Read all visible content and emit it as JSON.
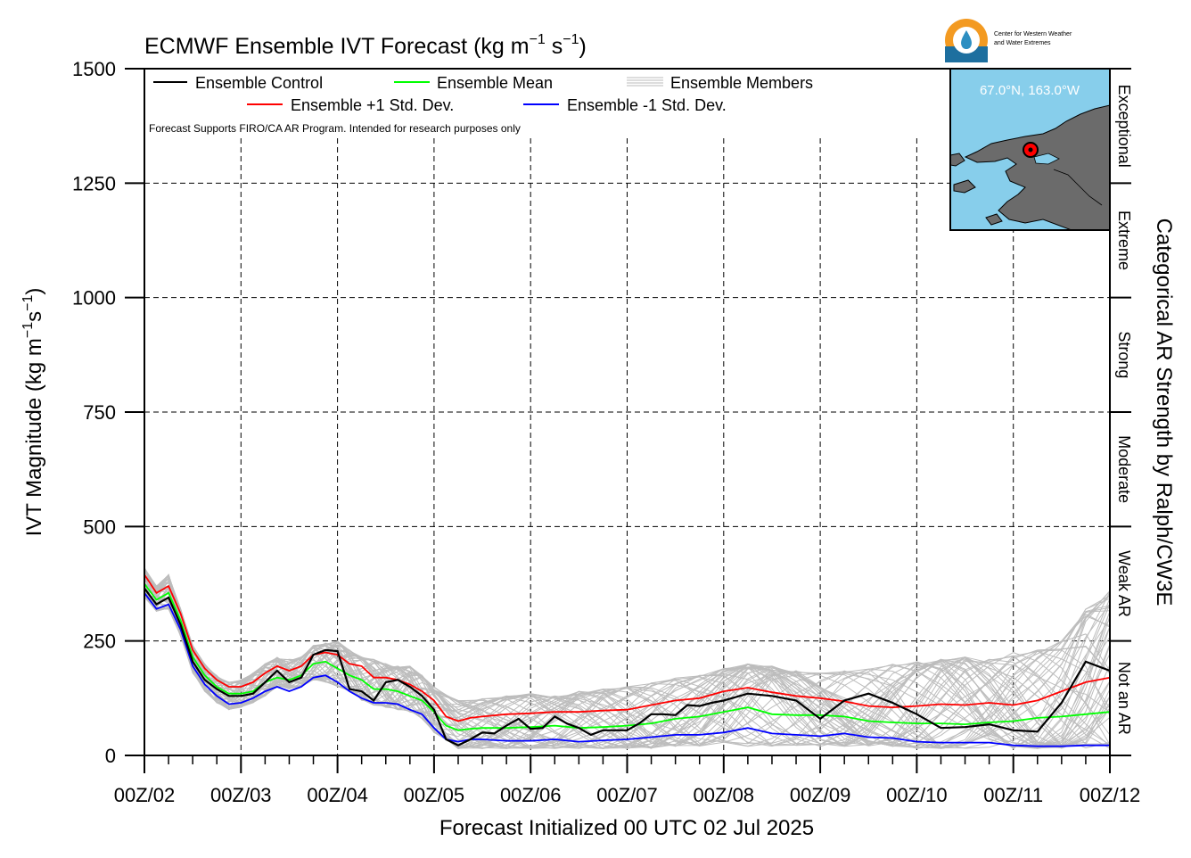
{
  "logo": {
    "org_line1": "Center for Western Weather",
    "org_line2": "and Water Extremes"
  },
  "inset_map": {
    "location_label": "67.0°N, 163.0°W",
    "ocean_color": "#87ceeb",
    "land_color": "#6b6b6b",
    "marker_color": "#ff0000"
  },
  "chart_data": {
    "type": "line",
    "title": "ECMWF Ensemble IVT Forecast (kg m",
    "title_exp1": "−1",
    "title_mid": " s",
    "title_exp2": "−1",
    "title_end": ")",
    "ylabel": "IVT Magnitude (kg m",
    "ylabel_exp1": "−1",
    "ylabel_mid": "s",
    "ylabel_exp2": "−1",
    "ylabel_end": ")",
    "xlabel": "Forecast Initialized 00 UTC 02 Jul 2025",
    "right_label": "Categorical AR Strength by Ralph/CW3E",
    "disclaimer": "Forecast Supports FIRO/CA AR Program. Intended for research purposes only",
    "ylim": [
      0,
      1500
    ],
    "xlim": [
      0,
      240
    ],
    "yticks": [
      0,
      250,
      500,
      750,
      1000,
      1250,
      1500
    ],
    "ytick_labels": [
      "0",
      "250",
      "500",
      "750",
      "1000",
      "1250",
      "1500"
    ],
    "xticks": [
      0,
      24,
      48,
      72,
      96,
      120,
      144,
      168,
      192,
      216,
      240
    ],
    "xtick_labels": [
      "00Z/02",
      "00Z/03",
      "00Z/04",
      "00Z/05",
      "00Z/06",
      "00Z/07",
      "00Z/08",
      "00Z/09",
      "00Z/10",
      "00Z/11",
      "00Z/12"
    ],
    "grid": true,
    "categories": [
      {
        "label": "Not an AR",
        "min": 0,
        "max": 250
      },
      {
        "label": "Weak AR",
        "min": 250,
        "max": 500
      },
      {
        "label": "Moderate",
        "min": 500,
        "max": 750
      },
      {
        "label": "Strong",
        "min": 750,
        "max": 1000
      },
      {
        "label": "Extreme",
        "min": 1000,
        "max": 1250
      },
      {
        "label": "Exceptional",
        "min": 1250,
        "max": 1500
      }
    ],
    "legend": [
      {
        "label": "Ensemble Control",
        "color": "#000000"
      },
      {
        "label": "Ensemble Mean",
        "color": "#00ff00"
      },
      {
        "label": "Ensemble Members",
        "color": "#bbbbbb"
      },
      {
        "label": "Ensemble +1 Std. Dev.",
        "color": "#ff0000"
      },
      {
        "label": "Ensemble -1 Std. Dev.",
        "color": "#0000ff"
      }
    ],
    "members_band": {
      "x": [
        0,
        3,
        6,
        9,
        12,
        15,
        18,
        21,
        24,
        27,
        30,
        33,
        36,
        39,
        42,
        45,
        48,
        51,
        54,
        57,
        60,
        63,
        66,
        69,
        72,
        78,
        84,
        90,
        96,
        102,
        108,
        114,
        120,
        126,
        132,
        138,
        144,
        150,
        156,
        162,
        168,
        174,
        180,
        186,
        192,
        198,
        204,
        210,
        216,
        222,
        228,
        234,
        240
      ],
      "low": [
        345,
        315,
        320,
        260,
        180,
        140,
        115,
        100,
        105,
        115,
        130,
        150,
        145,
        150,
        165,
        160,
        150,
        140,
        120,
        110,
        105,
        100,
        95,
        80,
        50,
        15,
        15,
        15,
        15,
        15,
        15,
        15,
        15,
        15,
        20,
        20,
        25,
        20,
        20,
        20,
        20,
        20,
        20,
        20,
        15,
        15,
        15,
        15,
        15,
        15,
        15,
        15,
        15
      ],
      "high": [
        410,
        370,
        395,
        320,
        240,
        200,
        175,
        160,
        165,
        180,
        200,
        215,
        210,
        215,
        240,
        245,
        250,
        230,
        215,
        210,
        200,
        195,
        195,
        175,
        150,
        120,
        125,
        130,
        135,
        130,
        140,
        145,
        150,
        160,
        170,
        175,
        190,
        200,
        195,
        185,
        180,
        185,
        190,
        200,
        205,
        210,
        215,
        210,
        225,
        230,
        250,
        320,
        360
      ]
    },
    "series": [
      {
        "name": "Ensemble Control",
        "color": "#000000",
        "x": [
          0,
          3,
          6,
          9,
          12,
          15,
          18,
          21,
          24,
          27,
          30,
          33,
          36,
          39,
          42,
          45,
          48,
          51,
          54,
          57,
          60,
          63,
          66,
          69,
          72,
          75,
          78,
          81,
          84,
          87,
          90,
          93,
          96,
          99,
          102,
          105,
          108,
          111,
          114,
          117,
          120,
          123,
          126,
          129,
          132,
          135,
          138,
          141,
          144,
          150,
          156,
          162,
          168,
          174,
          180,
          186,
          192,
          198,
          204,
          210,
          216,
          222,
          228,
          234,
          240
        ],
        "y": [
          365,
          330,
          345,
          285,
          205,
          165,
          145,
          130,
          130,
          135,
          160,
          185,
          160,
          170,
          220,
          230,
          228,
          145,
          140,
          120,
          160,
          165,
          150,
          130,
          100,
          35,
          22,
          35,
          50,
          48,
          65,
          80,
          58,
          60,
          85,
          70,
          60,
          45,
          55,
          55,
          55,
          70,
          90,
          90,
          88,
          110,
          108,
          115,
          120,
          135,
          130,
          120,
          80,
          120,
          135,
          115,
          90,
          60,
          62,
          68,
          55,
          52,
          115,
          205,
          185
        ]
      },
      {
        "name": "Ensemble Mean",
        "color": "#00ff00",
        "x": [
          0,
          3,
          6,
          9,
          12,
          15,
          18,
          21,
          24,
          27,
          30,
          33,
          36,
          39,
          42,
          45,
          48,
          51,
          54,
          57,
          60,
          63,
          66,
          69,
          72,
          75,
          78,
          81,
          84,
          90,
          96,
          102,
          108,
          114,
          120,
          126,
          132,
          138,
          144,
          150,
          156,
          162,
          168,
          174,
          180,
          186,
          192,
          198,
          204,
          210,
          216,
          222,
          228,
          234,
          240
        ],
        "y": [
          375,
          340,
          355,
          295,
          215,
          175,
          150,
          135,
          135,
          140,
          160,
          170,
          165,
          175,
          200,
          205,
          190,
          175,
          165,
          145,
          145,
          140,
          130,
          120,
          95,
          65,
          55,
          58,
          60,
          60,
          62,
          65,
          60,
          62,
          65,
          70,
          80,
          85,
          95,
          105,
          90,
          88,
          88,
          85,
          75,
          72,
          70,
          70,
          68,
          72,
          75,
          82,
          85,
          90,
          95
        ]
      },
      {
        "name": "Ensemble +1 Std. Dev.",
        "color": "#ff0000",
        "x": [
          0,
          3,
          6,
          9,
          12,
          15,
          18,
          21,
          24,
          27,
          30,
          33,
          36,
          39,
          42,
          45,
          48,
          51,
          54,
          57,
          60,
          63,
          66,
          69,
          72,
          75,
          78,
          81,
          84,
          90,
          96,
          102,
          108,
          114,
          120,
          126,
          132,
          138,
          144,
          150,
          156,
          162,
          168,
          174,
          180,
          186,
          192,
          198,
          204,
          210,
          216,
          222,
          228,
          234,
          240
        ],
        "y": [
          395,
          355,
          370,
          310,
          230,
          190,
          165,
          150,
          150,
          160,
          180,
          195,
          185,
          195,
          220,
          225,
          220,
          200,
          195,
          170,
          170,
          165,
          155,
          140,
          120,
          85,
          75,
          82,
          85,
          90,
          92,
          95,
          95,
          98,
          100,
          110,
          120,
          125,
          140,
          148,
          138,
          130,
          125,
          118,
          108,
          105,
          108,
          112,
          110,
          115,
          110,
          120,
          140,
          160,
          170
        ]
      },
      {
        "name": "Ensemble -1 Std. Dev.",
        "color": "#0000ff",
        "x": [
          0,
          3,
          6,
          9,
          12,
          15,
          18,
          21,
          24,
          27,
          30,
          33,
          36,
          39,
          42,
          45,
          48,
          51,
          54,
          57,
          60,
          63,
          66,
          69,
          72,
          75,
          78,
          81,
          84,
          90,
          96,
          102,
          108,
          114,
          120,
          126,
          132,
          138,
          144,
          150,
          156,
          162,
          168,
          174,
          180,
          186,
          192,
          198,
          204,
          210,
          216,
          222,
          228,
          234,
          240
        ],
        "y": [
          355,
          320,
          330,
          275,
          195,
          155,
          130,
          112,
          115,
          125,
          140,
          150,
          140,
          150,
          170,
          175,
          160,
          140,
          125,
          115,
          115,
          112,
          100,
          90,
          60,
          35,
          30,
          35,
          35,
          32,
          32,
          35,
          30,
          33,
          35,
          40,
          45,
          45,
          50,
          60,
          48,
          45,
          42,
          48,
          40,
          38,
          30,
          28,
          28,
          28,
          22,
          20,
          20,
          22,
          22
        ]
      }
    ]
  }
}
